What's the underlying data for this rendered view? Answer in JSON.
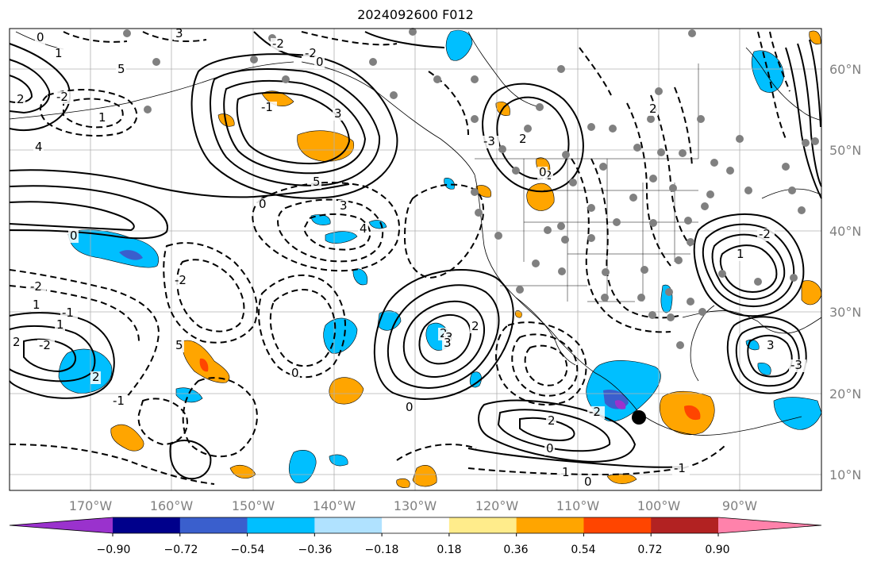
{
  "title": "2024092600 F012",
  "lat_labels": [
    "60°N",
    "50°N",
    "40°N",
    "30°N",
    "20°N",
    "10°N"
  ],
  "lon_labels": [
    "170°W",
    "160°W",
    "150°W",
    "140°W",
    "130°W",
    "120°W",
    "110°W",
    "100°W",
    "90°W"
  ],
  "colorbar": {
    "ticks": [
      "−0.90",
      "−0.72",
      "−0.54",
      "−0.36",
      "−0.18",
      "0.18",
      "0.36",
      "0.54",
      "0.72",
      "0.90"
    ],
    "colors": [
      "#9a32cd",
      "#00008b",
      "#3a5fcd",
      "#00bfff",
      "#b0e2ff",
      "#ffffff",
      "#ffec8b",
      "#ffa500",
      "#ff4500",
      "#b22222",
      "#ff82ab"
    ]
  },
  "contour_labels": [
    "3",
    "0",
    "1",
    "5",
    "2",
    "-2",
    "1",
    "4",
    "3",
    "5",
    "0",
    "3",
    "4",
    "-2",
    "0",
    "-2",
    "1",
    "1",
    "-1",
    "2",
    "-2",
    "0",
    "2",
    "3",
    "2",
    "-1",
    "5",
    "2",
    "3",
    "0",
    "-2",
    "2",
    "0",
    "1",
    "0",
    "-1",
    "-2",
    "-2",
    "0",
    "-1",
    "-3",
    "2",
    "0",
    "2",
    "2",
    "-2",
    "1",
    "3",
    "-3"
  ]
}
